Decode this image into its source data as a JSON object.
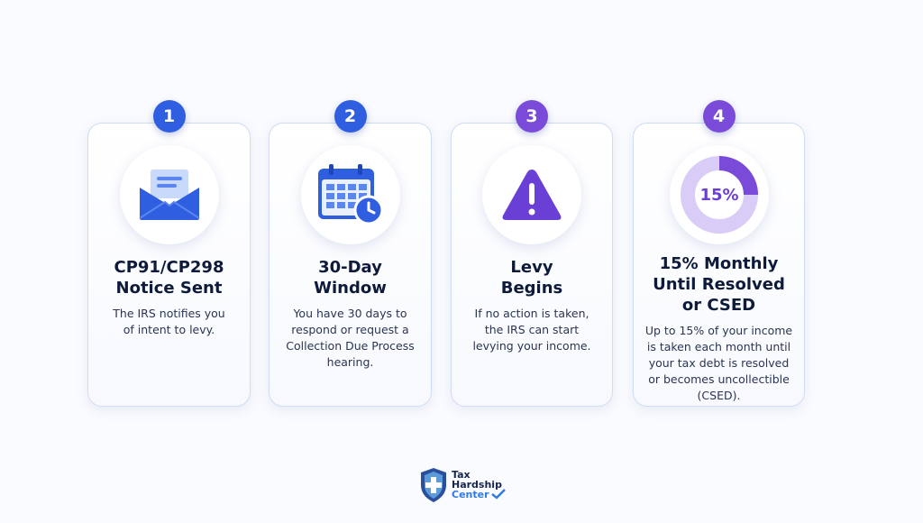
{
  "steps": [
    {
      "number": "1",
      "title_lines": [
        "CP91/CP298",
        "Notice Sent"
      ],
      "description_lines": [
        "The IRS notifies you",
        "of intent to levy."
      ]
    },
    {
      "number": "2",
      "title_lines": [
        "30-Day",
        "Window"
      ],
      "description_lines": [
        "You have 30 days to",
        "respond or request a",
        "Collection Due Process",
        "hearing."
      ]
    },
    {
      "number": "3",
      "title_lines": [
        "Levy",
        "Begins"
      ],
      "description_lines": [
        "If no action is taken,",
        "the IRS can start",
        "levying your income."
      ]
    },
    {
      "number": "4",
      "icon_label": "15%",
      "title_lines": [
        "15% Monthly",
        "Until Resolved",
        "or CSED"
      ],
      "description_lines": [
        "Up to 15% of your income",
        "is taken each month until",
        "your tax debt is resolved",
        "or becomes uncollectible",
        "(CSED)."
      ]
    }
  ],
  "logo": {
    "line1": "Tax",
    "line2": "Hardship",
    "line3": "Center"
  }
}
